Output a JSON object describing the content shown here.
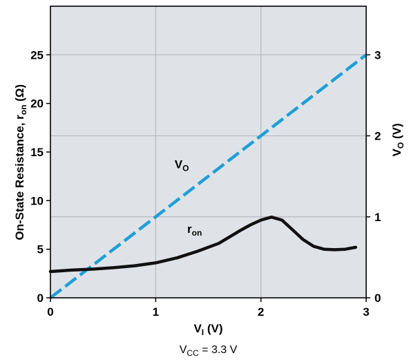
{
  "chart_data": {
    "type": "line",
    "x": {
      "label_main": "V",
      "label_sub": "I",
      "label_unit": " (V)",
      "range": [
        0,
        3
      ],
      "ticks": [
        0,
        1,
        2,
        3
      ]
    },
    "y_left": {
      "label_main": "On-State Resistance, r",
      "label_sub": "on",
      "label_unit": " (Ω)",
      "range": [
        0,
        30
      ],
      "ticks": [
        0,
        5,
        10,
        15,
        20,
        25
      ]
    },
    "y_right": {
      "label_main": "V",
      "label_sub": "O",
      "label_unit": " (V)",
      "range": [
        0,
        3.6
      ],
      "ticks": [
        0,
        1,
        2,
        3
      ]
    },
    "grid": true,
    "series": [
      {
        "name_main": "V",
        "name_sub": "O",
        "axis": "right",
        "style": "dashed",
        "color": "#1e9fd8",
        "x": [
          0,
          3
        ],
        "y": [
          0,
          3
        ]
      },
      {
        "name_main": "r",
        "name_sub": "on",
        "axis": "left",
        "style": "solid",
        "color": "#111111",
        "x": [
          0,
          0.2,
          0.4,
          0.6,
          0.8,
          1.0,
          1.2,
          1.4,
          1.6,
          1.8,
          1.9,
          2.0,
          2.1,
          2.2,
          2.3,
          2.4,
          2.5,
          2.6,
          2.7,
          2.8,
          2.9
        ],
        "y": [
          2.7,
          2.85,
          2.95,
          3.1,
          3.3,
          3.6,
          4.1,
          4.8,
          5.6,
          6.9,
          7.5,
          8.0,
          8.3,
          8.0,
          7.0,
          6.0,
          5.3,
          5.0,
          4.95,
          5.0,
          5.2
        ]
      }
    ],
    "note": {
      "main": "V",
      "sub": "CC",
      "rest": " = 3.3 V"
    }
  }
}
